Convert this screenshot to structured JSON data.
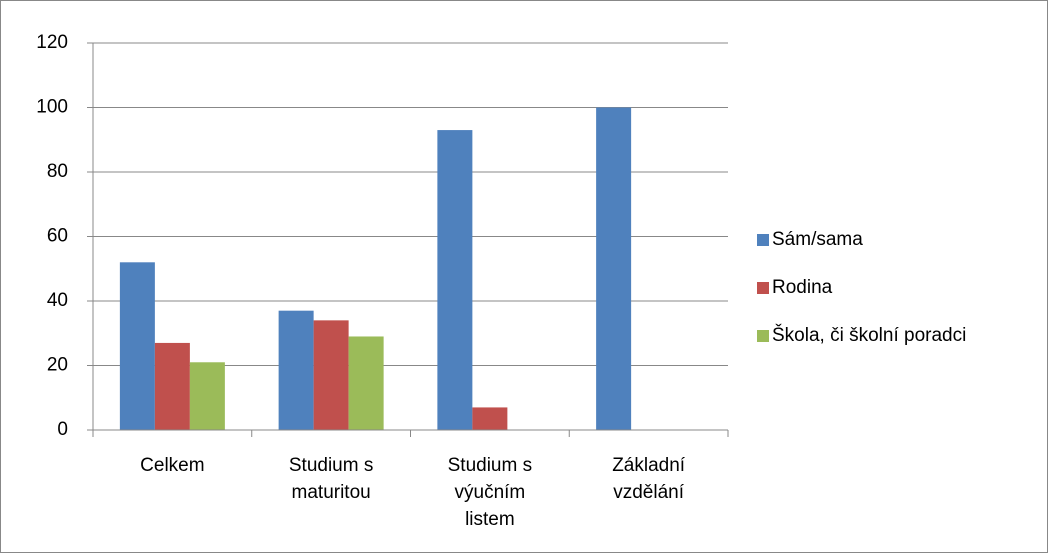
{
  "chart_data": {
    "type": "bar",
    "categories": [
      "Celkem",
      "Studium s maturitou",
      "Studium s výučním listem",
      "Základní vzdělání"
    ],
    "series": [
      {
        "name": "Sám/sama",
        "color": "#4f81bd",
        "values": [
          52,
          37,
          93,
          100
        ]
      },
      {
        "name": "Rodina",
        "color": "#c0504d",
        "values": [
          27,
          34,
          7,
          0
        ]
      },
      {
        "name": "Škola, či školní poradci",
        "color": "#9bbb59",
        "values": [
          21,
          29,
          0,
          0
        ]
      }
    ],
    "ylim": [
      0,
      120
    ],
    "yticks": [
      0,
      20,
      40,
      60,
      80,
      100,
      120
    ],
    "grid": true,
    "legend": "right"
  }
}
